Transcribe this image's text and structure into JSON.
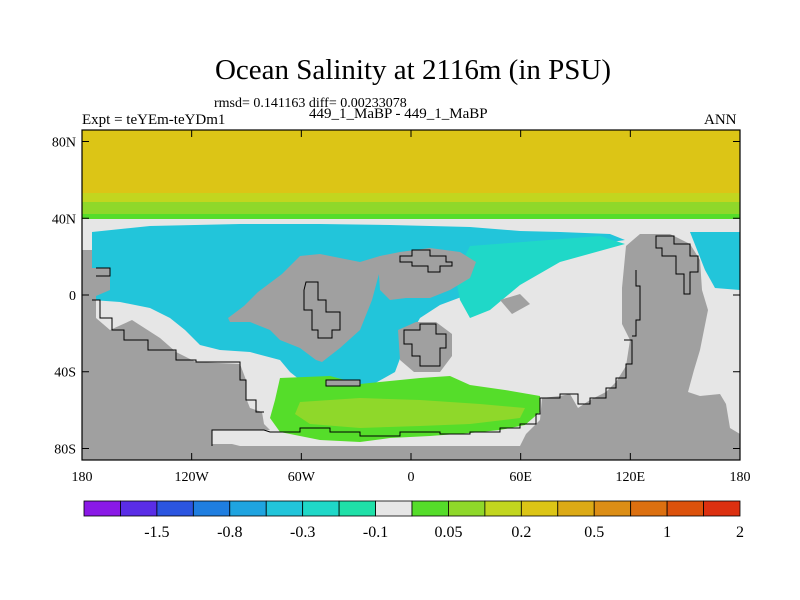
{
  "title": "Ocean Salinity at 2116m (in PSU)",
  "stats": "rmsd= 0.141163 diff= 0.00233078",
  "left_label": "Expt = teYEm-teYDm1",
  "center_label": "449_1_MaBP - 449_1_MaBP",
  "right_label": "ANN",
  "x_ticks": [
    {
      "lon": -180,
      "label": "180"
    },
    {
      "lon": -120,
      "label": "120W"
    },
    {
      "lon": -60,
      "label": "60W"
    },
    {
      "lon": 0,
      "label": "0"
    },
    {
      "lon": 60,
      "label": "60E"
    },
    {
      "lon": 120,
      "label": "120E"
    },
    {
      "lon": 180,
      "label": "180"
    }
  ],
  "y_ticks": [
    {
      "lat": 80,
      "label": "80N"
    },
    {
      "lat": 40,
      "label": "40N"
    },
    {
      "lat": 0,
      "label": "0"
    },
    {
      "lat": -40,
      "label": "40S"
    },
    {
      "lat": -80,
      "label": "80S"
    }
  ],
  "colorbar": {
    "colors": [
      "#8a19e6",
      "#5a2de6",
      "#2b55e0",
      "#1f7ee0",
      "#1fa4e0",
      "#22c5da",
      "#1fd8c8",
      "#1fe0a8",
      "#e6e6e6",
      "#55dd2a",
      "#8fd82a",
      "#c2d61f",
      "#dcc516",
      "#dcaa16",
      "#dc8e16",
      "#dc7010",
      "#dc520c",
      "#dc3010"
    ],
    "labels": [
      {
        "boundary": 2,
        "text": "-1.5"
      },
      {
        "boundary": 4,
        "text": "-0.8"
      },
      {
        "boundary": 6,
        "text": "-0.3"
      },
      {
        "boundary": 8,
        "text": "-0.1"
      },
      {
        "boundary": 10,
        "text": "0.05"
      },
      {
        "boundary": 12,
        "text": "0.2"
      },
      {
        "boundary": 14,
        "text": "0.5"
      },
      {
        "boundary": 16,
        "text": "1"
      },
      {
        "boundary": 18,
        "text": "2"
      }
    ]
  },
  "map_colors": {
    "land": "#a0a0a0",
    "neutral": "#e6e6e6",
    "cyan": "#22c5da",
    "cyan_light": "#1fd8c8",
    "green": "#55dd2a",
    "light_green": "#8fd82a",
    "yellow_green": "#c2d61f",
    "mustard": "#dcc516"
  }
}
